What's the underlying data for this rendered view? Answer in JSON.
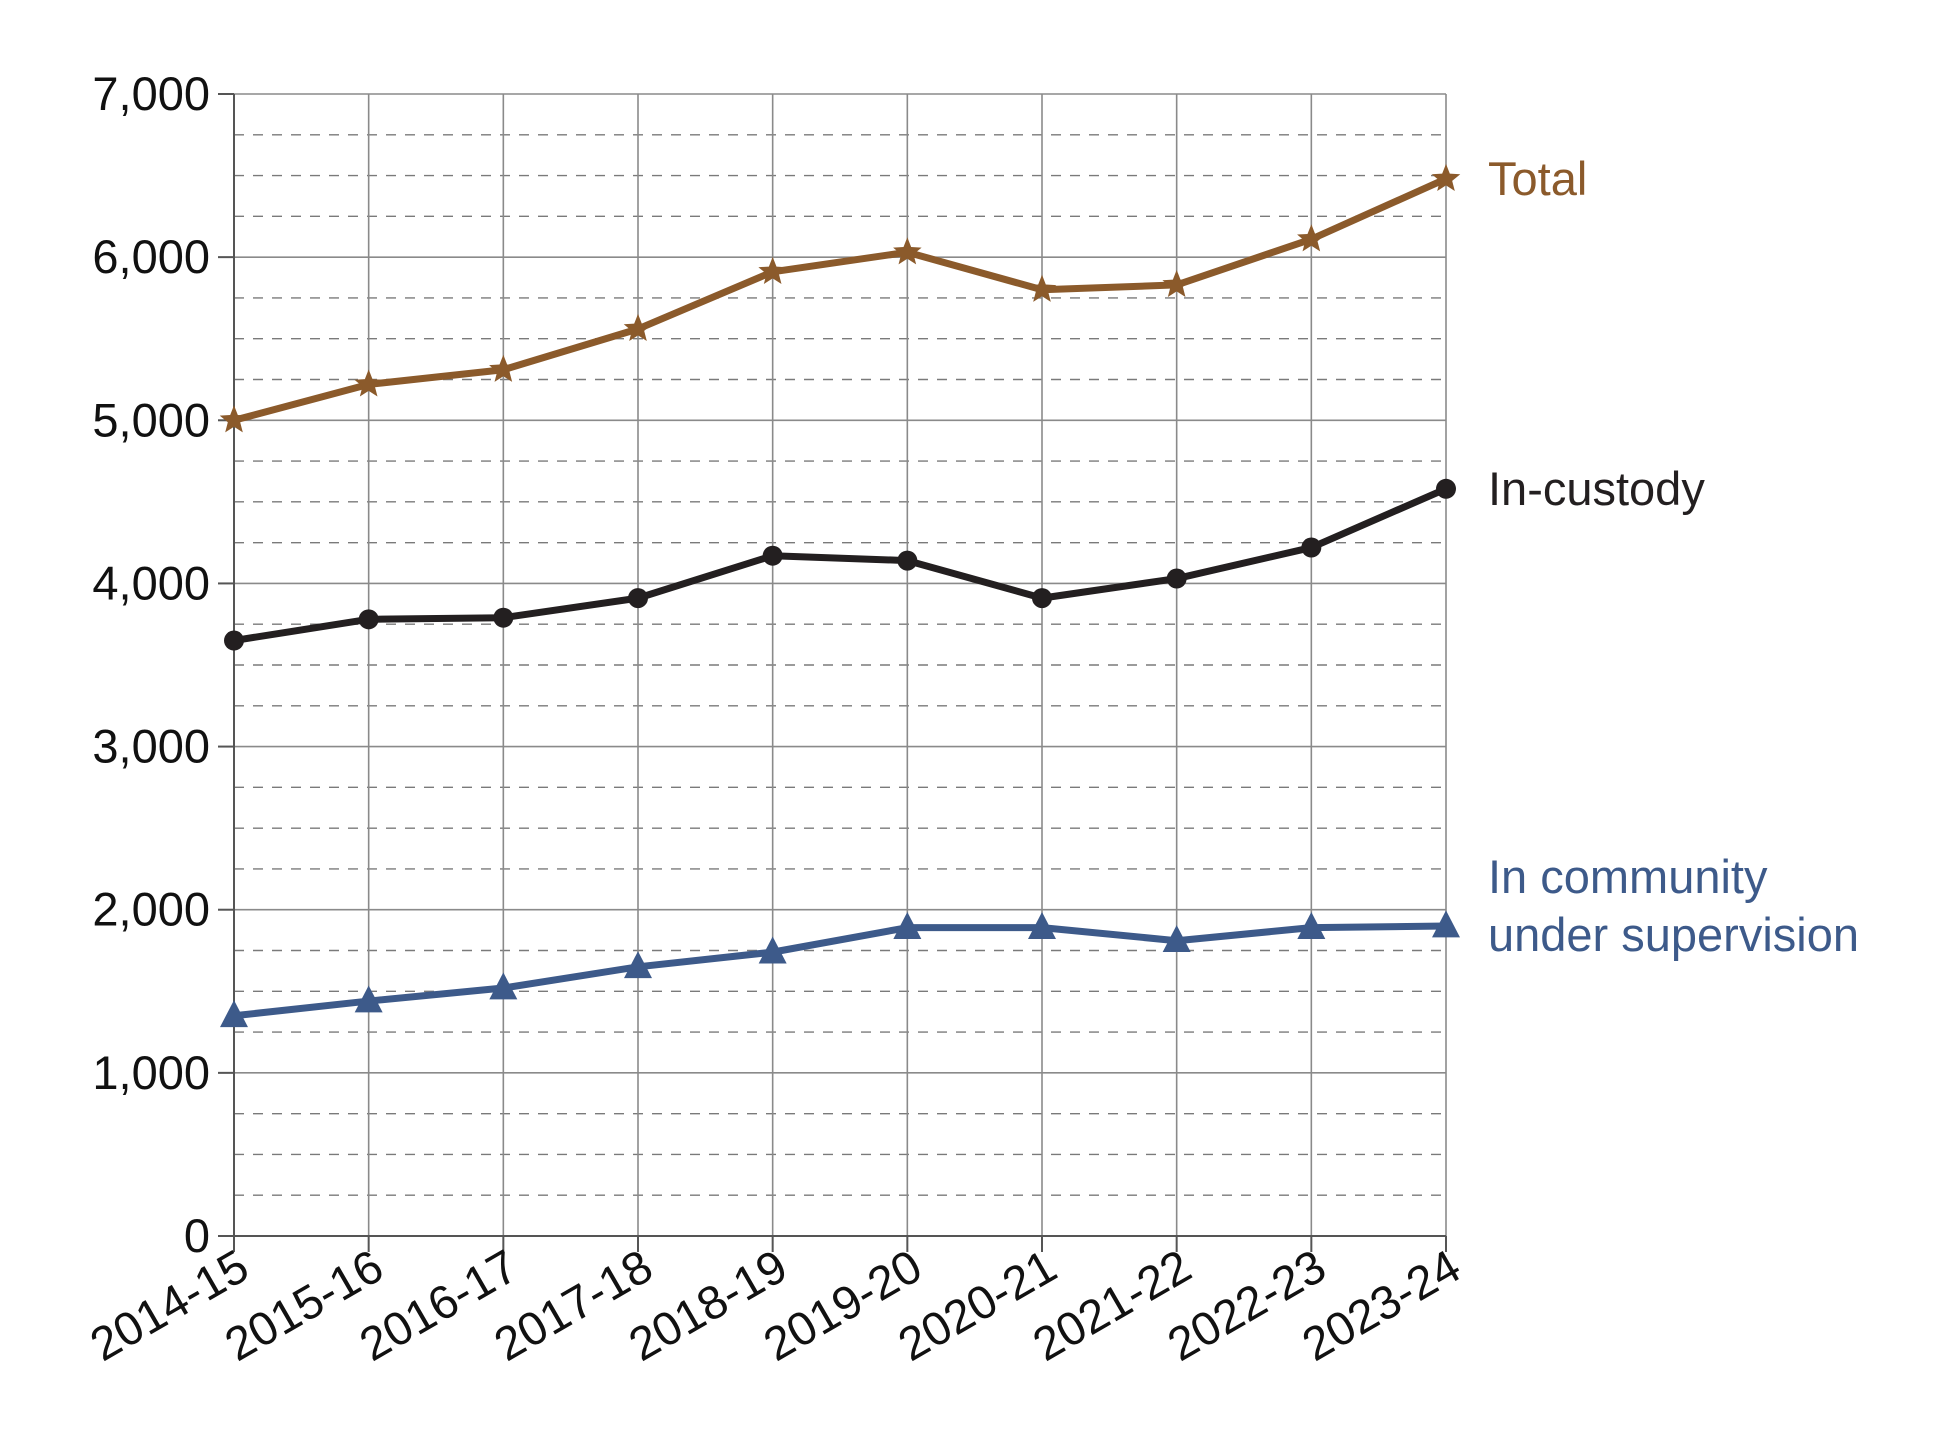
{
  "chart_data": {
    "type": "line",
    "title": "",
    "xlabel": "",
    "ylabel": "",
    "categories": [
      "2014-15",
      "2015-16",
      "2016-17",
      "2017-18",
      "2018-19",
      "2019-20",
      "2020-21",
      "2021-22",
      "2022-23",
      "2023-24"
    ],
    "ylim": [
      0,
      7000
    ],
    "yticks": [
      0,
      1000,
      2000,
      3000,
      4000,
      5000,
      6000,
      7000
    ],
    "ytick_labels": [
      "0",
      "1,000",
      "2,000",
      "3,000",
      "4,000",
      "5,000",
      "6,000",
      "7,000"
    ],
    "grid": {
      "major": true,
      "minor_dashed": true,
      "minor_step": 250
    },
    "legend_placement": "direct labels at right end of lines",
    "series": [
      {
        "key": "total",
        "label_lines": [
          "Total"
        ],
        "color": "#8B5A2B",
        "marker": "star",
        "values": [
          5000,
          5220,
          5310,
          5560,
          5910,
          6030,
          5800,
          5830,
          6110,
          6480
        ]
      },
      {
        "key": "custody",
        "label_lines": [
          "In-custody"
        ],
        "color": "#231F20",
        "marker": "circle",
        "values": [
          3650,
          3780,
          3790,
          3910,
          4170,
          4140,
          3910,
          4030,
          4220,
          4580
        ]
      },
      {
        "key": "community",
        "label_lines": [
          "In community",
          "under supervision"
        ],
        "color": "#3D5A8A",
        "marker": "triangle",
        "values": [
          1350,
          1440,
          1520,
          1650,
          1740,
          1890,
          1890,
          1810,
          1890,
          1900
        ]
      }
    ]
  }
}
